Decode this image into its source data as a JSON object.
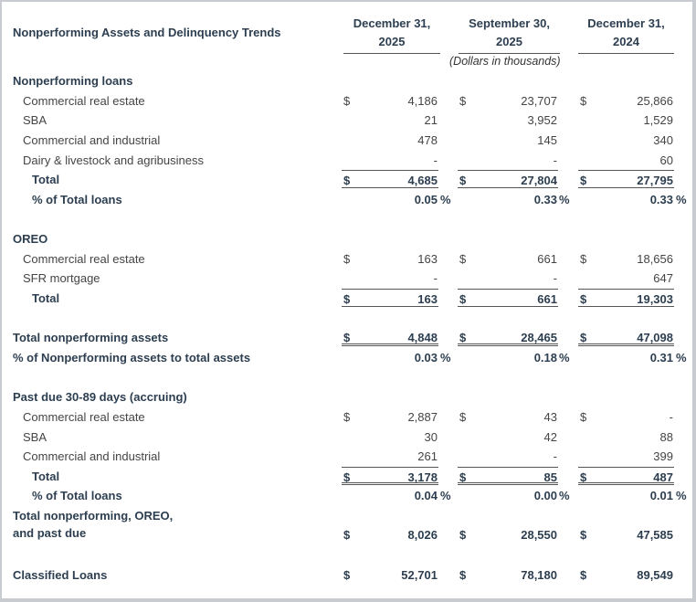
{
  "title": "Nonperforming Assets and Delinquency Trends",
  "columns": [
    "December 31,\n2025",
    "September 30,\n2025",
    "December 31,\n2024"
  ],
  "units": "(Dollars in thousands)",
  "rows": [
    {
      "kind": "section",
      "label": "Nonperforming loans"
    },
    {
      "kind": "item",
      "label": "Commercial real estate",
      "dollar": true,
      "values": [
        "4,186",
        "23,707",
        "25,866"
      ]
    },
    {
      "kind": "item",
      "label": "SBA",
      "values": [
        "21",
        "3,952",
        "1,529"
      ]
    },
    {
      "kind": "item",
      "label": "Commercial and industrial",
      "values": [
        "478",
        "145",
        "340"
      ]
    },
    {
      "kind": "item",
      "label": "Dairy & livestock and agribusiness",
      "values": [
        "-",
        "-",
        "60"
      ]
    },
    {
      "kind": "total",
      "label": "Total",
      "dollar": true,
      "values": [
        "4,685",
        "27,804",
        "27,795"
      ],
      "rule": "single"
    },
    {
      "kind": "pct",
      "label": "% of Total loans",
      "values": [
        "0.05",
        "0.33",
        "0.33"
      ]
    },
    {
      "kind": "spacer"
    },
    {
      "kind": "section",
      "label": "OREO"
    },
    {
      "kind": "item",
      "label": "Commercial real estate",
      "dollar": true,
      "values": [
        "163",
        "661",
        "18,656"
      ]
    },
    {
      "kind": "item",
      "label": "SFR mortgage",
      "values": [
        "-",
        "-",
        "647"
      ]
    },
    {
      "kind": "total",
      "label": "Total",
      "dollar": true,
      "values": [
        "163",
        "661",
        "19,303"
      ],
      "rule": "single"
    },
    {
      "kind": "spacer"
    },
    {
      "kind": "grand",
      "label": "Total nonperforming assets",
      "dollar": true,
      "values": [
        "4,848",
        "28,465",
        "47,098"
      ],
      "rule": "double"
    },
    {
      "kind": "pct flush",
      "label": "% of Nonperforming assets to total assets",
      "values": [
        "0.03",
        "0.18",
        "0.31"
      ]
    },
    {
      "kind": "spacer"
    },
    {
      "kind": "section",
      "label": "Past due 30-89 days (accruing)"
    },
    {
      "kind": "item",
      "label": "Commercial real estate",
      "dollar": true,
      "values": [
        "2,887",
        "43",
        "-"
      ]
    },
    {
      "kind": "item",
      "label": "SBA",
      "values": [
        "30",
        "42",
        "88"
      ]
    },
    {
      "kind": "item",
      "label": "Commercial and industrial",
      "values": [
        "261",
        "-",
        "399"
      ]
    },
    {
      "kind": "total",
      "label": "Total",
      "dollar": true,
      "values": [
        "3,178",
        "85",
        "487"
      ],
      "rule": "double"
    },
    {
      "kind": "pct",
      "label": "% of Total loans",
      "values": [
        "0.04",
        "0.00",
        "0.01"
      ]
    },
    {
      "kind": "grand tall",
      "label": "Total nonperforming, OREO,\nand past due",
      "dollar": true,
      "values": [
        "8,026",
        "28,550",
        "47,585"
      ]
    },
    {
      "kind": "spacer"
    },
    {
      "kind": "grand",
      "label": "Classified Loans",
      "dollar": true,
      "values": [
        "52,701",
        "78,180",
        "89,549"
      ]
    }
  ],
  "currency_symbol": "$",
  "percent_symbol": "%"
}
